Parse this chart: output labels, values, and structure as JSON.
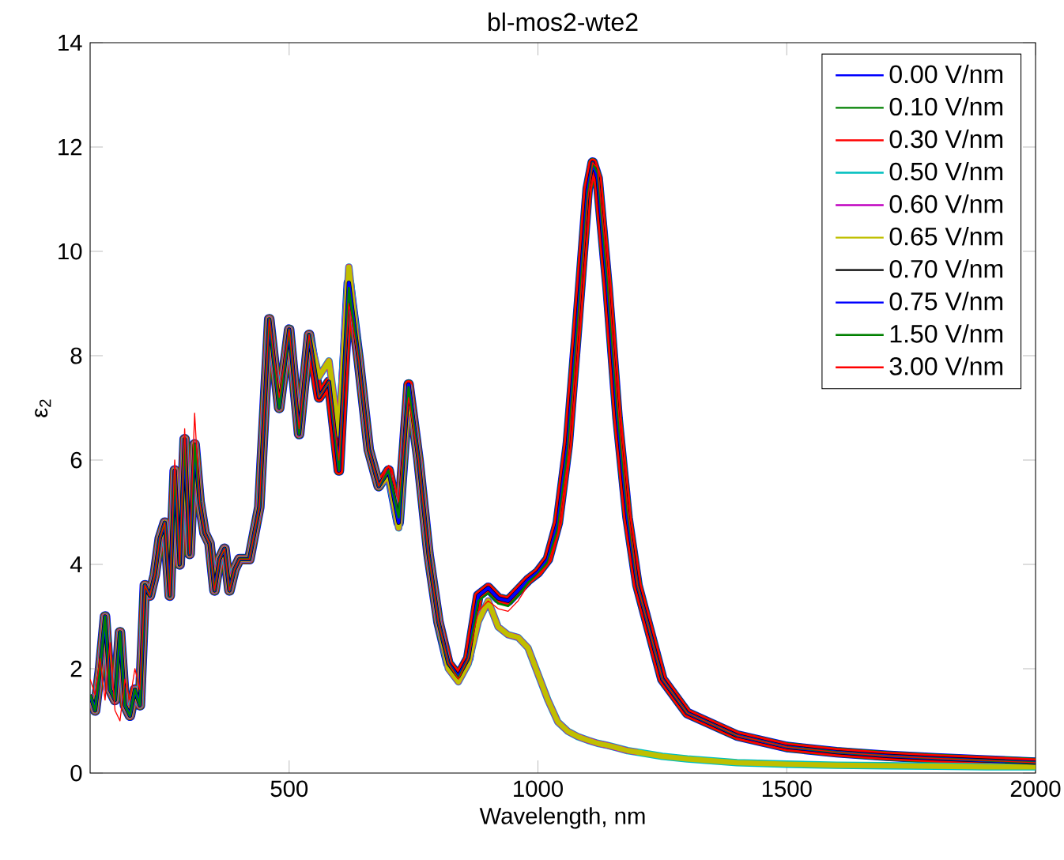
{
  "chart_data": {
    "type": "line",
    "title": "bl-mos2-wte2",
    "xlabel": "Wavelength, nm",
    "ylabel": "ε$_{2}$",
    "xlim": [
      100,
      2000
    ],
    "ylim": [
      0,
      14
    ],
    "xticks": [
      500,
      1000,
      1500,
      2000
    ],
    "yticks": [
      0,
      2,
      4,
      6,
      8,
      10,
      12,
      14
    ],
    "legend": "top right",
    "grid": false,
    "marker": "none",
    "line_style": "solid",
    "x": [
      100,
      110,
      120,
      130,
      140,
      150,
      160,
      170,
      180,
      190,
      200,
      210,
      220,
      230,
      240,
      250,
      260,
      270,
      280,
      290,
      300,
      310,
      320,
      330,
      340,
      350,
      360,
      370,
      380,
      390,
      400,
      420,
      440,
      460,
      480,
      500,
      520,
      540,
      560,
      580,
      600,
      620,
      640,
      660,
      680,
      700,
      720,
      740,
      760,
      780,
      800,
      820,
      840,
      860,
      880,
      900,
      920,
      940,
      960,
      980,
      1000,
      1020,
      1040,
      1060,
      1080,
      1100,
      1110,
      1120,
      1140,
      1160,
      1180,
      1200,
      1250,
      1300,
      1400,
      1500,
      1600,
      1700,
      1800,
      1900,
      2000
    ],
    "series": [
      {
        "name": "0.00 V/nm",
        "color": "#0000ff",
        "values": [
          1.5,
          1.2,
          2.0,
          3.0,
          1.6,
          1.4,
          2.7,
          1.3,
          1.1,
          1.6,
          1.3,
          3.6,
          3.4,
          3.8,
          4.5,
          4.8,
          3.4,
          5.8,
          4.0,
          6.4,
          4.2,
          6.3,
          5.2,
          4.6,
          4.4,
          3.5,
          4.1,
          4.3,
          3.5,
          3.9,
          4.1,
          4.1,
          5.1,
          8.7,
          7.0,
          8.5,
          6.5,
          8.4,
          7.2,
          7.5,
          5.8,
          9.4,
          7.9,
          6.2,
          5.5,
          5.8,
          4.8,
          7.45,
          6.0,
          4.2,
          2.9,
          2.1,
          1.85,
          2.2,
          3.4,
          3.55,
          3.35,
          3.3,
          3.5,
          3.7,
          3.85,
          4.1,
          4.8,
          6.3,
          8.7,
          11.2,
          11.7,
          11.4,
          9.3,
          6.8,
          4.9,
          3.6,
          1.8,
          1.15,
          0.72,
          0.5,
          0.4,
          0.33,
          0.28,
          0.24,
          0.2
        ]
      },
      {
        "name": "0.10 V/nm",
        "color": "#008000",
        "values": [
          1.5,
          1.2,
          2.0,
          3.0,
          1.6,
          1.4,
          2.7,
          1.3,
          1.1,
          1.6,
          1.3,
          3.6,
          3.4,
          3.8,
          4.5,
          4.8,
          3.4,
          5.8,
          4.0,
          6.4,
          4.2,
          6.3,
          5.2,
          4.6,
          4.4,
          3.5,
          4.1,
          4.3,
          3.5,
          3.9,
          4.1,
          4.1,
          5.1,
          8.7,
          7.0,
          8.5,
          6.5,
          8.4,
          7.2,
          7.5,
          5.8,
          9.4,
          7.9,
          6.2,
          5.5,
          5.8,
          4.8,
          7.45,
          6.0,
          4.2,
          2.9,
          2.1,
          1.85,
          2.2,
          3.4,
          3.55,
          3.35,
          3.3,
          3.5,
          3.7,
          3.85,
          4.1,
          4.8,
          6.3,
          8.7,
          11.2,
          11.7,
          11.4,
          9.3,
          6.8,
          4.9,
          3.6,
          1.8,
          1.15,
          0.72,
          0.5,
          0.4,
          0.33,
          0.28,
          0.24,
          0.2
        ]
      },
      {
        "name": "0.30 V/nm",
        "color": "#ff0000",
        "values": [
          1.5,
          1.2,
          2.0,
          3.0,
          1.6,
          1.4,
          2.7,
          1.3,
          1.1,
          1.6,
          1.3,
          3.6,
          3.4,
          3.8,
          4.5,
          4.8,
          3.4,
          5.8,
          4.0,
          6.4,
          4.2,
          6.3,
          5.2,
          4.6,
          4.4,
          3.5,
          4.1,
          4.3,
          3.5,
          3.9,
          4.1,
          4.1,
          5.1,
          8.7,
          7.0,
          8.5,
          6.5,
          8.4,
          7.2,
          7.5,
          5.8,
          9.4,
          7.9,
          6.2,
          5.5,
          5.8,
          4.8,
          7.45,
          6.0,
          4.2,
          2.9,
          2.1,
          1.85,
          2.2,
          3.4,
          3.55,
          3.35,
          3.3,
          3.5,
          3.7,
          3.85,
          4.1,
          4.8,
          6.3,
          8.7,
          11.2,
          11.7,
          11.4,
          9.3,
          6.8,
          4.9,
          3.6,
          1.8,
          1.15,
          0.72,
          0.5,
          0.4,
          0.33,
          0.28,
          0.24,
          0.2
        ]
      },
      {
        "name": "0.50 V/nm",
        "color": "#00bfbf",
        "values": [
          1.5,
          1.2,
          2.0,
          3.0,
          1.6,
          1.4,
          2.7,
          1.3,
          1.1,
          1.6,
          1.3,
          3.6,
          3.4,
          3.8,
          4.5,
          4.8,
          3.4,
          5.8,
          4.0,
          6.4,
          4.2,
          6.3,
          5.2,
          4.6,
          4.4,
          3.5,
          4.1,
          4.3,
          3.5,
          3.9,
          4.1,
          4.1,
          5.1,
          8.7,
          7.0,
          8.5,
          6.5,
          8.4,
          7.6,
          7.9,
          6.5,
          9.7,
          7.9,
          6.2,
          5.5,
          5.7,
          4.7,
          7.4,
          6.0,
          4.2,
          2.9,
          2.0,
          1.75,
          2.1,
          2.9,
          3.3,
          2.8,
          2.65,
          2.6,
          2.4,
          1.9,
          1.4,
          0.98,
          0.8,
          0.7,
          0.63,
          0.6,
          0.57,
          0.53,
          0.48,
          0.43,
          0.4,
          0.32,
          0.27,
          0.2,
          0.17,
          0.15,
          0.14,
          0.13,
          0.12,
          0.12
        ]
      },
      {
        "name": "0.60 V/nm",
        "color": "#bf00bf",
        "values": [
          1.5,
          1.2,
          2.0,
          3.0,
          1.6,
          1.4,
          2.7,
          1.3,
          1.1,
          1.6,
          1.3,
          3.6,
          3.4,
          3.8,
          4.5,
          4.8,
          3.4,
          5.8,
          4.0,
          6.4,
          4.2,
          6.3,
          5.2,
          4.6,
          4.4,
          3.5,
          4.1,
          4.3,
          3.5,
          3.9,
          4.1,
          4.1,
          5.1,
          8.7,
          7.0,
          8.5,
          6.5,
          8.4,
          7.6,
          7.9,
          6.5,
          9.7,
          7.9,
          6.2,
          5.5,
          5.7,
          4.7,
          7.4,
          6.0,
          4.2,
          2.9,
          2.0,
          1.75,
          2.1,
          2.9,
          3.3,
          2.8,
          2.65,
          2.6,
          2.4,
          1.9,
          1.4,
          0.98,
          0.8,
          0.7,
          0.63,
          0.6,
          0.57,
          0.53,
          0.48,
          0.43,
          0.4,
          null,
          null,
          null,
          null,
          null,
          null,
          null,
          null,
          null
        ]
      },
      {
        "name": "0.65 V/nm",
        "color": "#bfbf00",
        "values": [
          1.5,
          1.2,
          2.0,
          3.0,
          1.6,
          1.4,
          2.7,
          1.3,
          1.1,
          1.6,
          1.3,
          3.6,
          3.4,
          3.8,
          4.5,
          4.8,
          3.4,
          5.8,
          4.0,
          6.4,
          4.2,
          6.3,
          5.2,
          4.6,
          4.4,
          3.5,
          4.1,
          4.3,
          3.5,
          3.9,
          4.1,
          4.1,
          5.1,
          8.7,
          7.0,
          8.5,
          6.5,
          8.4,
          7.6,
          7.9,
          6.5,
          9.7,
          7.9,
          6.2,
          5.5,
          5.7,
          4.7,
          7.4,
          6.0,
          4.2,
          2.9,
          2.0,
          1.75,
          2.1,
          2.9,
          3.3,
          2.8,
          2.65,
          2.6,
          2.4,
          1.9,
          1.4,
          0.98,
          0.8,
          0.7,
          0.63,
          0.6,
          0.57,
          0.53,
          0.48,
          0.43,
          0.4,
          0.32,
          0.27,
          0.2,
          0.17,
          0.15,
          0.14,
          0.13,
          0.12,
          0.12
        ]
      },
      {
        "name": "0.70 V/nm",
        "color": "#000000",
        "values": [
          1.5,
          1.2,
          2.0,
          3.0,
          1.6,
          1.4,
          2.7,
          1.3,
          1.1,
          1.6,
          1.3,
          3.6,
          3.4,
          3.8,
          4.5,
          4.8,
          3.4,
          5.8,
          4.0,
          6.4,
          4.2,
          6.3,
          5.2,
          4.6,
          4.4,
          3.5,
          4.1,
          4.3,
          3.5,
          3.9,
          4.1,
          4.1,
          5.1,
          8.7,
          7.0,
          8.5,
          6.5,
          8.4,
          7.2,
          7.5,
          5.8,
          9.4,
          7.9,
          6.2,
          5.5,
          5.8,
          4.8,
          7.45,
          6.0,
          4.2,
          2.9,
          2.1,
          1.85,
          2.2,
          3.4,
          3.55,
          3.35,
          3.3,
          3.5,
          3.7,
          3.85,
          4.1,
          4.8,
          6.3,
          8.7,
          11.2,
          11.7,
          11.4,
          9.3,
          6.8,
          4.9,
          3.6,
          1.8,
          1.15,
          0.72,
          0.5,
          0.4,
          0.33,
          0.28,
          0.24,
          0.2
        ]
      },
      {
        "name": "0.75 V/nm",
        "color": "#0000ff",
        "values": [
          1.5,
          1.2,
          2.0,
          3.0,
          1.6,
          1.4,
          2.7,
          1.3,
          1.1,
          1.6,
          1.3,
          3.6,
          3.4,
          3.8,
          4.5,
          4.8,
          3.4,
          5.8,
          4.0,
          6.4,
          4.2,
          6.3,
          5.2,
          4.6,
          4.4,
          3.5,
          4.1,
          4.3,
          3.5,
          3.9,
          4.1,
          4.1,
          5.1,
          8.7,
          7.0,
          8.5,
          6.5,
          8.4,
          7.2,
          7.5,
          5.8,
          9.4,
          7.9,
          6.2,
          5.5,
          5.8,
          4.8,
          7.45,
          6.0,
          4.2,
          2.9,
          2.1,
          1.85,
          2.2,
          3.4,
          3.55,
          3.35,
          3.3,
          3.5,
          3.7,
          3.85,
          4.1,
          4.8,
          6.3,
          8.7,
          11.2,
          11.7,
          11.4,
          9.3,
          6.8,
          4.9,
          3.6,
          1.8,
          1.15,
          0.72,
          0.5,
          0.4,
          0.33,
          0.28,
          0.24,
          0.2
        ]
      },
      {
        "name": "1.50 V/nm",
        "color": "#008000",
        "values": [
          1.5,
          1.2,
          2.0,
          3.0,
          1.6,
          1.4,
          2.7,
          1.3,
          1.1,
          1.6,
          1.3,
          3.6,
          3.4,
          3.8,
          4.5,
          4.8,
          3.4,
          5.8,
          4.0,
          6.4,
          4.2,
          6.3,
          5.2,
          4.6,
          4.4,
          3.5,
          4.1,
          4.3,
          3.5,
          3.9,
          4.1,
          4.1,
          5.1,
          8.7,
          7.0,
          8.5,
          6.5,
          8.4,
          7.2,
          7.5,
          5.8,
          9.3,
          7.9,
          6.2,
          5.5,
          5.8,
          4.9,
          7.4,
          6.0,
          4.2,
          2.9,
          2.1,
          1.82,
          2.2,
          3.3,
          3.45,
          3.25,
          3.2,
          3.4,
          3.65,
          3.82,
          4.05,
          4.7,
          6.2,
          8.6,
          11.1,
          11.7,
          11.5,
          9.4,
          6.9,
          5.0,
          3.6,
          1.8,
          1.15,
          0.72,
          0.5,
          0.4,
          0.33,
          0.28,
          0.24,
          0.2
        ]
      },
      {
        "name": "3.00 V/nm",
        "color": "#ff0000",
        "values": [
          1.8,
          1.5,
          2.2,
          1.4,
          2.5,
          1.2,
          1.0,
          1.8,
          1.4,
          2.0,
          1.6,
          3.6,
          3.4,
          3.8,
          4.5,
          4.8,
          3.4,
          6.0,
          4.0,
          6.6,
          4.2,
          6.9,
          5.2,
          4.6,
          4.4,
          3.5,
          4.1,
          4.3,
          3.5,
          3.9,
          4.1,
          4.1,
          5.1,
          8.7,
          7.2,
          8.5,
          6.6,
          8.4,
          7.2,
          7.5,
          6.0,
          9.0,
          7.9,
          6.2,
          5.5,
          5.9,
          5.2,
          7.2,
          6.0,
          4.2,
          2.9,
          2.1,
          1.8,
          2.2,
          3.1,
          3.3,
          3.15,
          3.1,
          3.3,
          3.6,
          3.8,
          4.0,
          4.6,
          6.0,
          8.4,
          11.0,
          11.7,
          11.6,
          9.6,
          7.1,
          5.1,
          3.6,
          1.8,
          1.15,
          0.72,
          0.5,
          0.4,
          0.33,
          0.28,
          0.24,
          0.2
        ]
      }
    ]
  }
}
